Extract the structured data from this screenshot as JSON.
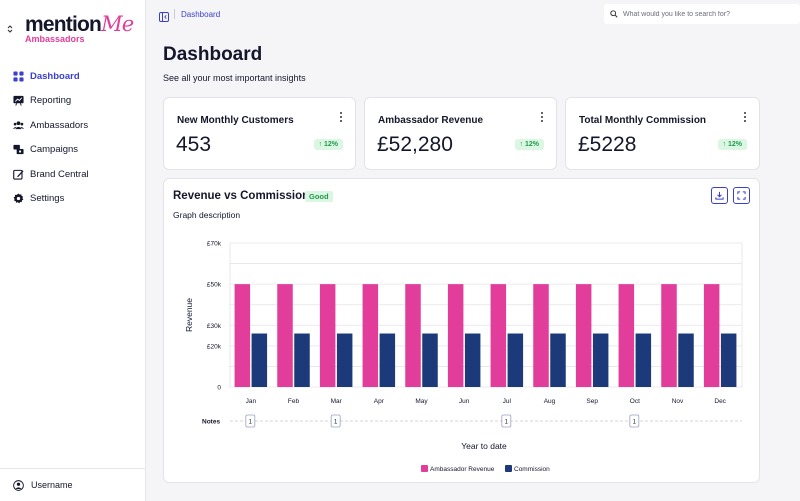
{
  "app": {
    "logo_text_main": "mention",
    "logo_text_me": "Me",
    "logo_subtitle": "Ambassadors"
  },
  "sidebar": {
    "items": [
      {
        "label": "Dashboard",
        "icon": "grid-icon",
        "active": true
      },
      {
        "label": "Reporting",
        "icon": "chart-board-icon",
        "active": false
      },
      {
        "label": "Ambassadors",
        "icon": "users-icon",
        "active": false
      },
      {
        "label": "Campaigns",
        "icon": "campaigns-icon",
        "active": false
      },
      {
        "label": "Brand Central",
        "icon": "edit-icon",
        "active": false
      },
      {
        "label": "Settings",
        "icon": "gear-icon",
        "active": false
      }
    ],
    "footer_user": "Username"
  },
  "topbar": {
    "breadcrumb": "Dashboard",
    "search_placeholder": "What would you like to search for?"
  },
  "page": {
    "title": "Dashboard",
    "subtitle": "See all your most important insights"
  },
  "stats": [
    {
      "title": "New Monthly Customers",
      "value": "453",
      "change": "12%"
    },
    {
      "title": "Ambassador Revenue",
      "value": "£52,280",
      "change": "12%"
    },
    {
      "title": "Total Monthly Commission",
      "value": "£5228",
      "change": "12%"
    }
  ],
  "chart_card": {
    "title": "Revenue vs Commission",
    "status_badge": "Good",
    "description": "Graph description"
  },
  "colors": {
    "accent": "#3a3fd0",
    "revenue": "#e23d9a",
    "commission": "#1c3a7a",
    "positive_bg": "#dcf6e4",
    "positive_text": "#1f9a4a"
  },
  "chart_data": {
    "type": "bar",
    "categories": [
      "Jan",
      "Feb",
      "Mar",
      "Apr",
      "May",
      "Jun",
      "Jul",
      "Aug",
      "Sep",
      "Oct",
      "Nov",
      "Dec"
    ],
    "series": [
      {
        "name": "Ambassador Revenue",
        "values": [
          50000,
          50000,
          50000,
          50000,
          50000,
          50000,
          50000,
          50000,
          50000,
          50000,
          50000,
          50000
        ]
      },
      {
        "name": "Commission",
        "values": [
          26000,
          26000,
          26000,
          26000,
          26000,
          26000,
          26000,
          26000,
          26000,
          26000,
          26000,
          26000
        ]
      }
    ],
    "ylabel": "Revenue",
    "xlabel": "Year to date",
    "ylim": [
      0,
      70000
    ],
    "yticks": [
      0,
      20000,
      30000,
      50000,
      70000
    ],
    "ytick_labels": [
      "0",
      "£20k",
      "£30k",
      "£50k",
      "£70k"
    ],
    "grid": true,
    "legend": "bottom-center",
    "notes_label": "Notes",
    "notes": [
      {
        "month": "Jan",
        "count": "1"
      },
      {
        "month": "Mar",
        "count": "1"
      },
      {
        "month": "Jul",
        "count": "1"
      },
      {
        "month": "Oct",
        "count": "1"
      }
    ]
  }
}
